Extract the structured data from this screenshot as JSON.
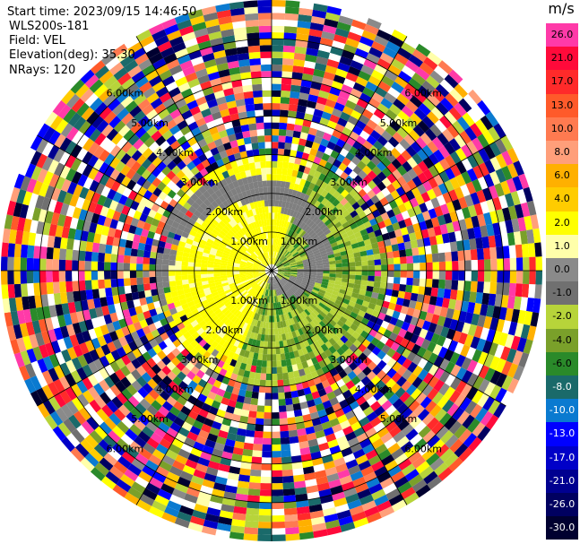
{
  "header": {
    "start_time": "Start time: 2023/09/15 14:46:50",
    "instrument": "WLS200s-181",
    "field": "Field: VEL",
    "elevation": "Elevation(deg): 35.30",
    "nrays": "NRays: 120"
  },
  "colorbar": {
    "unit": "m/s",
    "ticks": [
      "26.0",
      "21.0",
      "17.0",
      "13.0",
      "10.0",
      "8.0",
      "6.0",
      "4.0",
      "2.0",
      "1.0",
      "0.0",
      "-1.0",
      "-2.0",
      "-4.0",
      "-6.0",
      "-8.0",
      "-10.0",
      "-13.0",
      "-17.0",
      "-21.0",
      "-26.0",
      "-30.0"
    ],
    "colors": [
      "#ff3aa8",
      "#ff0a3a",
      "#ff2a2a",
      "#ff5a2a",
      "#ff7a50",
      "#ff9f7a",
      "#ffb000",
      "#ffcc00",
      "#ffff00",
      "#ffffaa",
      "#8a8a8a",
      "#707070",
      "#b7d43a",
      "#7aa02a",
      "#2a8a2a",
      "#1a6a6a",
      "#0a7ad0",
      "#0000ff",
      "#0000c8",
      "#000090",
      "#000060",
      "#000030"
    ]
  },
  "chart_data": {
    "type": "heatmap",
    "subtype": "PPI polar velocity display",
    "field": "VEL",
    "units": "m/s",
    "range_ring_labels": [
      "1.00km",
      "2.00km",
      "3.00km",
      "4.00km",
      "5.00km",
      "6.00km"
    ],
    "range_rings_km": [
      1,
      2,
      3,
      4,
      5,
      6
    ],
    "max_range_km": 7,
    "nrays": 120,
    "spoke_angles_deg": [
      0,
      30,
      60,
      90,
      120,
      150,
      180,
      210,
      240,
      270,
      300,
      330
    ],
    "near_field_km": 3,
    "near_field_pattern": "yellow (positive ~2 m/s) on west half, grey (~0 m/s) band spiral, green (~-2 to -4 m/s) east half",
    "far_field_pattern": "noisy random colors beyond ~3 km"
  }
}
